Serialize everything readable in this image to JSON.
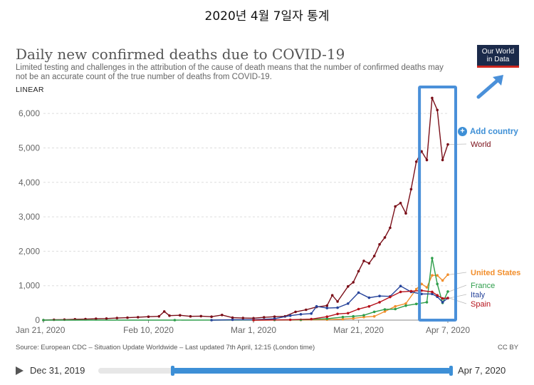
{
  "header": {
    "korean_title": "2020년 4월 7일자 통계",
    "title": "Daily new confirmed deaths due to COVID-19",
    "subtitle": "Limited testing and challenges in the attribution of the cause of death means that the number of confirmed deaths may not be an accurate count of the true number of deaths from COVID-19.",
    "scale_label": "LINEAR",
    "logo_text": [
      "Our World",
      "in Data"
    ],
    "add_country_label": "Add country"
  },
  "footer": {
    "source": "Source: European CDC – Situation Update Worldwide – Last updated 7th April, 12:15 (London time)",
    "license": "CC BY"
  },
  "timeline": {
    "start_label": "Dec 31, 2019",
    "end_label": "Apr 7, 2020"
  },
  "chart_data": {
    "type": "line",
    "xlabel": "",
    "ylabel": "",
    "xlim": [
      "2020-01-21",
      "2020-04-07"
    ],
    "ylim": [
      0,
      6500
    ],
    "y_ticks": [
      0,
      1000,
      2000,
      3000,
      4000,
      5000,
      6000
    ],
    "y_tick_labels": [
      "0",
      "1,000",
      "2,000",
      "3,000",
      "4,000",
      "5,000",
      "6,000"
    ],
    "x_ticks": [
      "2020-01-21",
      "2020-02-10",
      "2020-03-01",
      "2020-03-21",
      "2020-04-07"
    ],
    "x_tick_labels": [
      "Jan 21, 2020",
      "Feb 10, 2020",
      "Mar 1, 2020",
      "Mar 21, 2020",
      "Apr 7, 2020"
    ],
    "grid": "horizontal",
    "legend": "right (labels at series ends)",
    "series": [
      {
        "name": "World",
        "color": "#7a0e18",
        "points": [
          [
            "2020-01-21",
            0
          ],
          [
            "2020-01-23",
            10
          ],
          [
            "2020-01-25",
            15
          ],
          [
            "2020-01-27",
            25
          ],
          [
            "2020-01-29",
            30
          ],
          [
            "2020-01-31",
            40
          ],
          [
            "2020-02-02",
            45
          ],
          [
            "2020-02-04",
            60
          ],
          [
            "2020-02-06",
            70
          ],
          [
            "2020-02-08",
            85
          ],
          [
            "2020-02-10",
            100
          ],
          [
            "2020-02-12",
            110
          ],
          [
            "2020-02-13",
            250
          ],
          [
            "2020-02-14",
            130
          ],
          [
            "2020-02-16",
            140
          ],
          [
            "2020-02-18",
            110
          ],
          [
            "2020-02-20",
            115
          ],
          [
            "2020-02-22",
            100
          ],
          [
            "2020-02-24",
            150
          ],
          [
            "2020-02-26",
            70
          ],
          [
            "2020-02-28",
            60
          ],
          [
            "2020-03-01",
            55
          ],
          [
            "2020-03-03",
            80
          ],
          [
            "2020-03-05",
            100
          ],
          [
            "2020-03-07",
            110
          ],
          [
            "2020-03-09",
            240
          ],
          [
            "2020-03-11",
            300
          ],
          [
            "2020-03-13",
            380
          ],
          [
            "2020-03-15",
            420
          ],
          [
            "2020-03-16",
            720
          ],
          [
            "2020-03-17",
            540
          ],
          [
            "2020-03-19",
            980
          ],
          [
            "2020-03-20",
            1100
          ],
          [
            "2020-03-21",
            1420
          ],
          [
            "2020-03-22",
            1720
          ],
          [
            "2020-03-23",
            1650
          ],
          [
            "2020-03-24",
            1860
          ],
          [
            "2020-03-25",
            2200
          ],
          [
            "2020-03-26",
            2400
          ],
          [
            "2020-03-27",
            2680
          ],
          [
            "2020-03-28",
            3300
          ],
          [
            "2020-03-29",
            3400
          ],
          [
            "2020-03-30",
            3100
          ],
          [
            "2020-03-31",
            3800
          ],
          [
            "2020-04-01",
            4600
          ],
          [
            "2020-04-02",
            4900
          ],
          [
            "2020-04-03",
            4650
          ],
          [
            "2020-04-04",
            6450
          ],
          [
            "2020-04-05",
            6100
          ],
          [
            "2020-04-06",
            4650
          ],
          [
            "2020-04-07",
            5100
          ]
        ]
      },
      {
        "name": "United States",
        "color": "#f28e2b",
        "points": [
          [
            "2020-03-01",
            0
          ],
          [
            "2020-03-10",
            5
          ],
          [
            "2020-03-15",
            15
          ],
          [
            "2020-03-18",
            30
          ],
          [
            "2020-03-20",
            50
          ],
          [
            "2020-03-22",
            90
          ],
          [
            "2020-03-24",
            110
          ],
          [
            "2020-03-26",
            250
          ],
          [
            "2020-03-28",
            400
          ],
          [
            "2020-03-30",
            480
          ],
          [
            "2020-04-01",
            900
          ],
          [
            "2020-04-02",
            1050
          ],
          [
            "2020-04-03",
            950
          ],
          [
            "2020-04-04",
            1300
          ],
          [
            "2020-04-05",
            1300
          ],
          [
            "2020-04-06",
            1150
          ],
          [
            "2020-04-07",
            1320
          ]
        ]
      },
      {
        "name": "France",
        "color": "#2e9e4b",
        "points": [
          [
            "2020-01-21",
            0
          ],
          [
            "2020-02-15",
            1
          ],
          [
            "2020-03-05",
            5
          ],
          [
            "2020-03-10",
            10
          ],
          [
            "2020-03-15",
            40
          ],
          [
            "2020-03-18",
            90
          ],
          [
            "2020-03-20",
            110
          ],
          [
            "2020-03-22",
            140
          ],
          [
            "2020-03-24",
            240
          ],
          [
            "2020-03-26",
            310
          ],
          [
            "2020-03-28",
            320
          ],
          [
            "2020-03-30",
            420
          ],
          [
            "2020-04-01",
            470
          ],
          [
            "2020-04-03",
            520
          ],
          [
            "2020-04-04",
            1800
          ],
          [
            "2020-04-05",
            1050
          ],
          [
            "2020-04-06",
            500
          ],
          [
            "2020-04-07",
            830
          ]
        ]
      },
      {
        "name": "Italy",
        "color": "#26439a",
        "points": [
          [
            "2020-02-22",
            0
          ],
          [
            "2020-02-26",
            10
          ],
          [
            "2020-03-01",
            10
          ],
          [
            "2020-03-05",
            40
          ],
          [
            "2020-03-08",
            130
          ],
          [
            "2020-03-10",
            170
          ],
          [
            "2020-03-12",
            190
          ],
          [
            "2020-03-13",
            400
          ],
          [
            "2020-03-15",
            350
          ],
          [
            "2020-03-17",
            360
          ],
          [
            "2020-03-19",
            480
          ],
          [
            "2020-03-21",
            800
          ],
          [
            "2020-03-23",
            650
          ],
          [
            "2020-03-25",
            700
          ],
          [
            "2020-03-27",
            690
          ],
          [
            "2020-03-29",
            990
          ],
          [
            "2020-03-31",
            820
          ],
          [
            "2020-04-02",
            760
          ],
          [
            "2020-04-04",
            760
          ],
          [
            "2020-04-05",
            680
          ],
          [
            "2020-04-06",
            520
          ],
          [
            "2020-04-07",
            640
          ]
        ]
      },
      {
        "name": "Spain",
        "color": "#b5121b",
        "points": [
          [
            "2020-03-01",
            0
          ],
          [
            "2020-03-08",
            10
          ],
          [
            "2020-03-12",
            30
          ],
          [
            "2020-03-15",
            100
          ],
          [
            "2020-03-17",
            180
          ],
          [
            "2020-03-19",
            200
          ],
          [
            "2020-03-21",
            320
          ],
          [
            "2020-03-23",
            400
          ],
          [
            "2020-03-25",
            520
          ],
          [
            "2020-03-27",
            670
          ],
          [
            "2020-03-29",
            820
          ],
          [
            "2020-03-31",
            840
          ],
          [
            "2020-04-02",
            860
          ],
          [
            "2020-04-04",
            820
          ],
          [
            "2020-04-05",
            720
          ],
          [
            "2020-04-06",
            630
          ],
          [
            "2020-04-07",
            640
          ]
        ]
      }
    ]
  }
}
